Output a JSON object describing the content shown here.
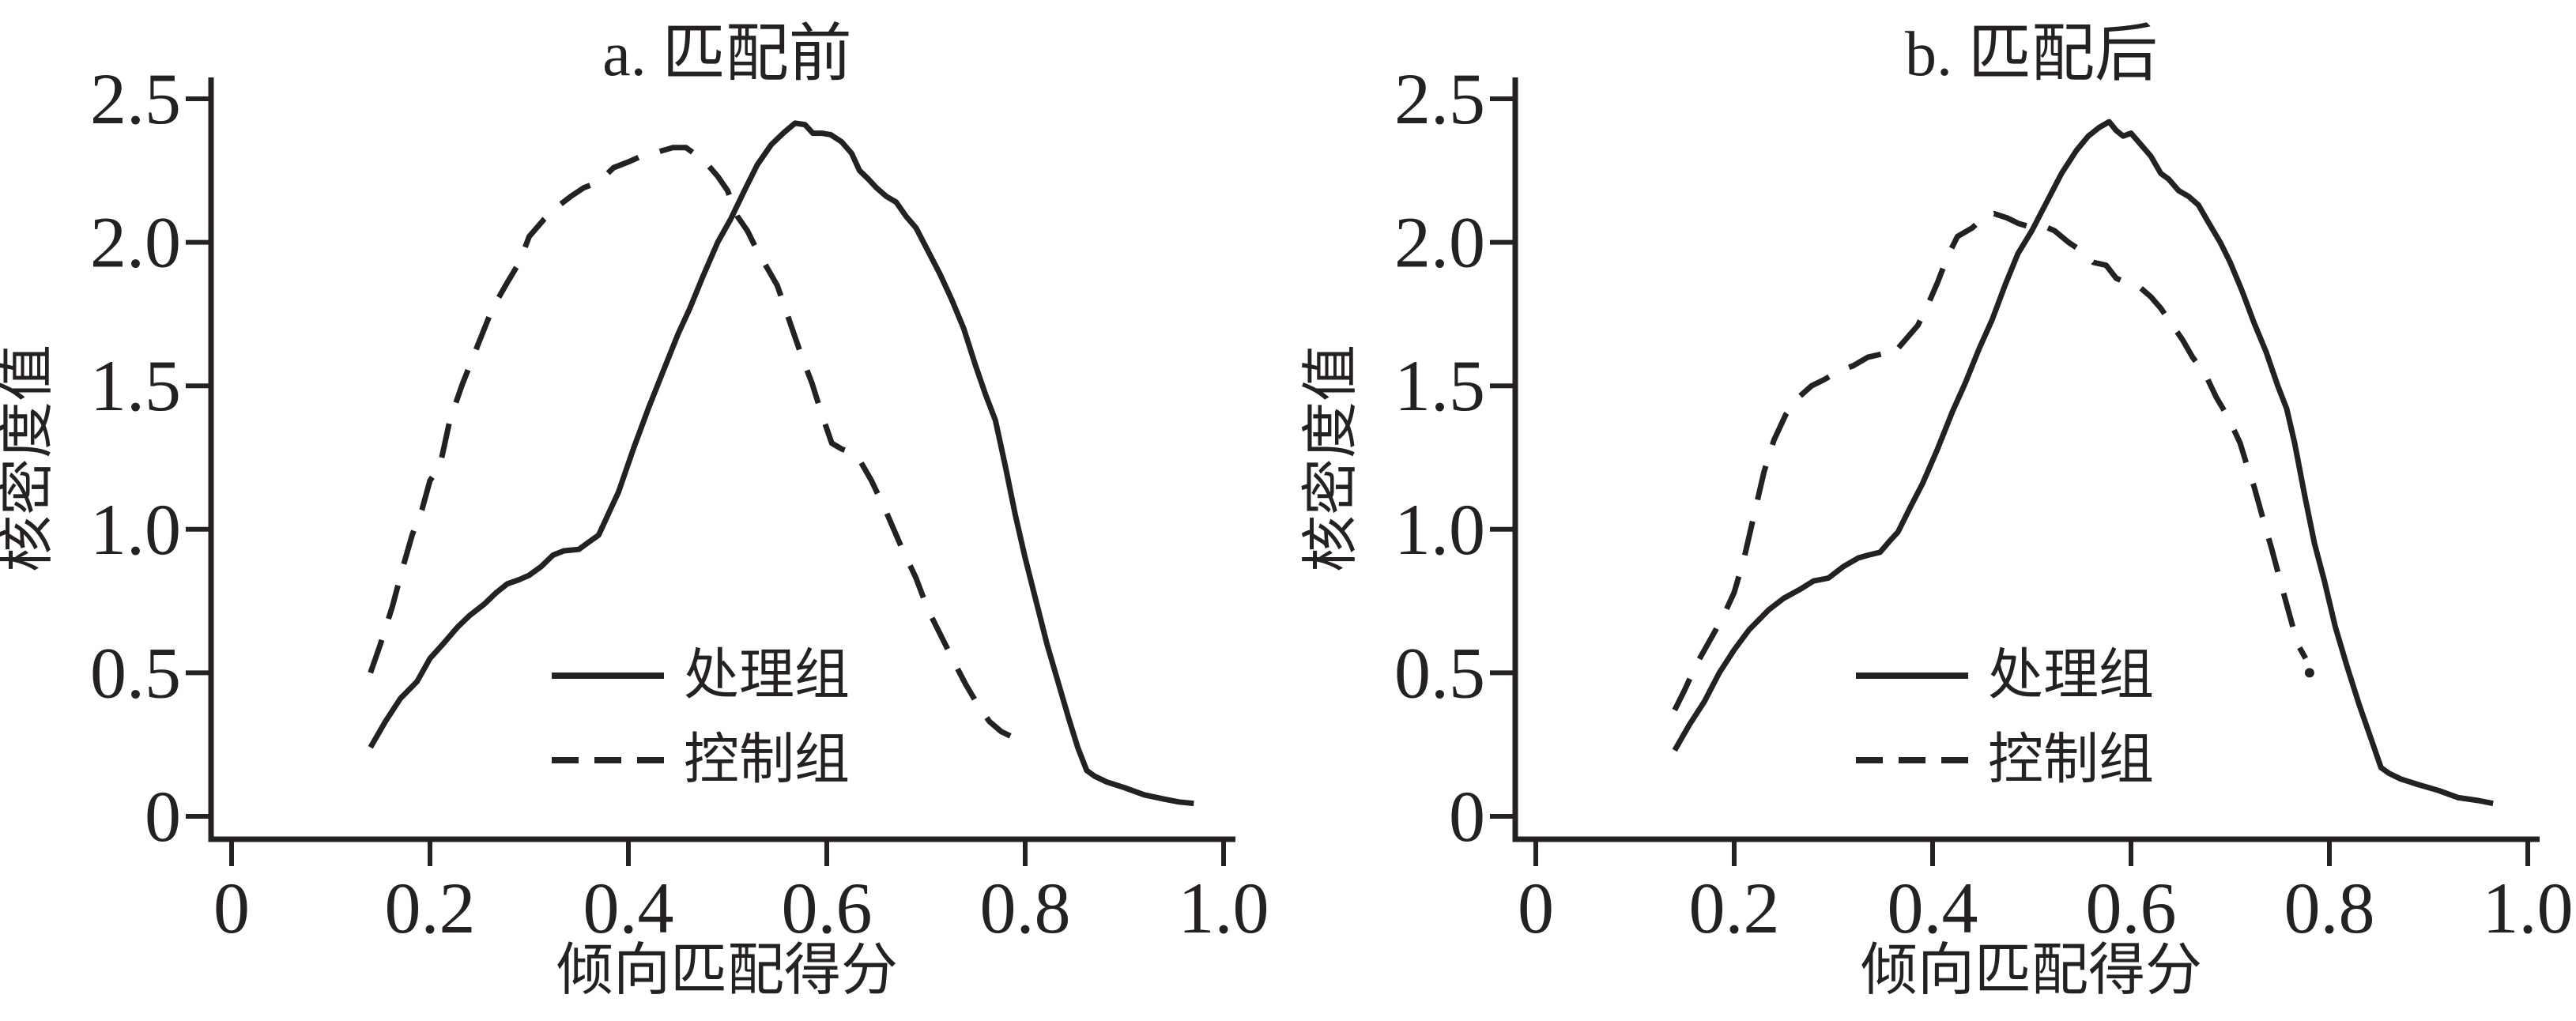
{
  "figure": {
    "description": "两幅核密度曲线图（倾向得分匹配前后对比）",
    "ink_color": "#262121",
    "background_color": "#ffffff"
  },
  "chart_data": [
    {
      "type": "line",
      "panel": "a",
      "title": "a. 匹配前",
      "xlabel": "倾向匹配得分",
      "ylabel": "核密度值",
      "xlim": [
        0,
        1.0
      ],
      "ylim": [
        0,
        2.5
      ],
      "x_ticks": [
        "0",
        "0.2",
        "0.4",
        "0.6",
        "0.8",
        "1.0"
      ],
      "y_ticks": [
        "0",
        "0.5",
        "1.0",
        "1.5",
        "2.0",
        "2.5"
      ],
      "grid": false,
      "legend_position": "inside-lower-center",
      "series": [
        {
          "name": "处理组",
          "style": "solid",
          "points": [
            [
              0.14,
              0.24
            ],
            [
              0.155,
              0.33
            ],
            [
              0.17,
              0.41
            ],
            [
              0.187,
              0.47
            ],
            [
              0.2,
              0.55
            ],
            [
              0.213,
              0.6
            ],
            [
              0.228,
              0.66
            ],
            [
              0.24,
              0.7
            ],
            [
              0.255,
              0.74
            ],
            [
              0.267,
              0.78
            ],
            [
              0.278,
              0.81
            ],
            [
              0.29,
              0.825
            ],
            [
              0.3,
              0.84
            ],
            [
              0.312,
              0.87
            ],
            [
              0.324,
              0.91
            ],
            [
              0.335,
              0.925
            ],
            [
              0.35,
              0.93
            ],
            [
              0.36,
              0.955
            ],
            [
              0.37,
              0.98
            ],
            [
              0.382,
              1.07
            ],
            [
              0.39,
              1.13
            ],
            [
              0.405,
              1.28
            ],
            [
              0.42,
              1.42
            ],
            [
              0.435,
              1.55
            ],
            [
              0.45,
              1.68
            ],
            [
              0.462,
              1.77
            ],
            [
              0.475,
              1.88
            ],
            [
              0.49,
              2.0
            ],
            [
              0.503,
              2.08
            ],
            [
              0.517,
              2.18
            ],
            [
              0.53,
              2.27
            ],
            [
              0.544,
              2.34
            ],
            [
              0.556,
              2.38
            ],
            [
              0.568,
              2.415
            ],
            [
              0.578,
              2.41
            ],
            [
              0.586,
              2.38
            ],
            [
              0.595,
              2.38
            ],
            [
              0.604,
              2.375
            ],
            [
              0.615,
              2.35
            ],
            [
              0.625,
              2.31
            ],
            [
              0.633,
              2.25
            ],
            [
              0.642,
              2.22
            ],
            [
              0.65,
              2.19
            ],
            [
              0.66,
              2.16
            ],
            [
              0.67,
              2.14
            ],
            [
              0.68,
              2.09
            ],
            [
              0.69,
              2.05
            ],
            [
              0.702,
              1.97
            ],
            [
              0.714,
              1.89
            ],
            [
              0.726,
              1.8
            ],
            [
              0.738,
              1.7
            ],
            [
              0.75,
              1.57
            ],
            [
              0.76,
              1.47
            ],
            [
              0.77,
              1.38
            ],
            [
              0.78,
              1.22
            ],
            [
              0.79,
              1.05
            ],
            [
              0.8,
              0.9
            ],
            [
              0.811,
              0.75
            ],
            [
              0.822,
              0.6
            ],
            [
              0.833,
              0.47
            ],
            [
              0.844,
              0.34
            ],
            [
              0.853,
              0.24
            ],
            [
              0.862,
              0.16
            ],
            [
              0.87,
              0.14
            ],
            [
              0.882,
              0.12
            ],
            [
              0.9,
              0.1
            ],
            [
              0.92,
              0.075
            ],
            [
              0.94,
              0.06
            ],
            [
              0.955,
              0.05
            ],
            [
              0.97,
              0.045
            ]
          ]
        },
        {
          "name": "控制组",
          "style": "dashed",
          "points": [
            [
              0.14,
              0.5
            ],
            [
              0.15,
              0.6
            ],
            [
              0.162,
              0.73
            ],
            [
              0.172,
              0.86
            ],
            [
              0.182,
              0.98
            ],
            [
              0.192,
              1.07
            ],
            [
              0.2,
              1.17
            ],
            [
              0.21,
              1.22
            ],
            [
              0.22,
              1.38
            ],
            [
              0.232,
              1.5
            ],
            [
              0.248,
              1.64
            ],
            [
              0.263,
              1.77
            ],
            [
              0.278,
              1.86
            ],
            [
              0.29,
              1.93
            ],
            [
              0.3,
              2.02
            ],
            [
              0.315,
              2.08
            ],
            [
              0.327,
              2.12
            ],
            [
              0.342,
              2.16
            ],
            [
              0.355,
              2.19
            ],
            [
              0.37,
              2.21
            ],
            [
              0.385,
              2.26
            ],
            [
              0.4,
              2.28
            ],
            [
              0.413,
              2.3
            ],
            [
              0.43,
              2.315
            ],
            [
              0.445,
              2.33
            ],
            [
              0.458,
              2.33
            ],
            [
              0.47,
              2.3
            ],
            [
              0.48,
              2.27
            ],
            [
              0.49,
              2.23
            ],
            [
              0.5,
              2.18
            ],
            [
              0.51,
              2.09
            ],
            [
              0.52,
              2.04
            ],
            [
              0.53,
              1.97
            ],
            [
              0.54,
              1.91
            ],
            [
              0.55,
              1.85
            ],
            [
              0.562,
              1.73
            ],
            [
              0.575,
              1.6
            ],
            [
              0.585,
              1.51
            ],
            [
              0.595,
              1.4
            ],
            [
              0.605,
              1.3
            ],
            [
              0.615,
              1.28
            ],
            [
              0.63,
              1.26
            ],
            [
              0.645,
              1.17
            ],
            [
              0.66,
              1.06
            ],
            [
              0.675,
              0.94
            ],
            [
              0.69,
              0.83
            ],
            [
              0.702,
              0.72
            ],
            [
              0.715,
              0.63
            ],
            [
              0.728,
              0.54
            ],
            [
              0.74,
              0.46
            ],
            [
              0.752,
              0.39
            ],
            [
              0.764,
              0.33
            ],
            [
              0.776,
              0.295
            ],
            [
              0.785,
              0.28
            ]
          ]
        }
      ]
    },
    {
      "type": "line",
      "panel": "b",
      "title": "b. 匹配后",
      "xlabel": "倾向匹配得分",
      "ylabel": "核密度值",
      "xlim": [
        0,
        1.0
      ],
      "ylim": [
        0,
        2.5
      ],
      "x_ticks": [
        "0",
        "0.2",
        "0.4",
        "0.6",
        "0.8",
        "1.0"
      ],
      "y_ticks": [
        "0",
        "0.5",
        "1.0",
        "1.5",
        "2.0",
        "2.5"
      ],
      "grid": false,
      "legend_position": "inside-lower-center",
      "series": [
        {
          "name": "处理组",
          "style": "solid",
          "points": [
            [
              0.14,
              0.23
            ],
            [
              0.155,
              0.32
            ],
            [
              0.17,
              0.4
            ],
            [
              0.185,
              0.5
            ],
            [
              0.2,
              0.58
            ],
            [
              0.215,
              0.65
            ],
            [
              0.235,
              0.72
            ],
            [
              0.25,
              0.76
            ],
            [
              0.266,
              0.79
            ],
            [
              0.28,
              0.82
            ],
            [
              0.295,
              0.83
            ],
            [
              0.31,
              0.87
            ],
            [
              0.325,
              0.9
            ],
            [
              0.335,
              0.91
            ],
            [
              0.347,
              0.92
            ],
            [
              0.357,
              0.96
            ],
            [
              0.365,
              0.99
            ],
            [
              0.378,
              1.08
            ],
            [
              0.39,
              1.16
            ],
            [
              0.405,
              1.28
            ],
            [
              0.42,
              1.41
            ],
            [
              0.433,
              1.51
            ],
            [
              0.447,
              1.63
            ],
            [
              0.46,
              1.73
            ],
            [
              0.473,
              1.85
            ],
            [
              0.486,
              1.96
            ],
            [
              0.5,
              2.04
            ],
            [
              0.515,
              2.14
            ],
            [
              0.53,
              2.24
            ],
            [
              0.545,
              2.32
            ],
            [
              0.557,
              2.37
            ],
            [
              0.568,
              2.4
            ],
            [
              0.578,
              2.42
            ],
            [
              0.585,
              2.39
            ],
            [
              0.592,
              2.37
            ],
            [
              0.6,
              2.38
            ],
            [
              0.61,
              2.34
            ],
            [
              0.62,
              2.3
            ],
            [
              0.63,
              2.24
            ],
            [
              0.638,
              2.22
            ],
            [
              0.648,
              2.18
            ],
            [
              0.658,
              2.16
            ],
            [
              0.668,
              2.13
            ],
            [
              0.678,
              2.07
            ],
            [
              0.69,
              2.0
            ],
            [
              0.7,
              1.93
            ],
            [
              0.712,
              1.83
            ],
            [
              0.724,
              1.72
            ],
            [
              0.736,
              1.62
            ],
            [
              0.748,
              1.5
            ],
            [
              0.757,
              1.42
            ],
            [
              0.765,
              1.3
            ],
            [
              0.775,
              1.12
            ],
            [
              0.785,
              0.95
            ],
            [
              0.795,
              0.82
            ],
            [
              0.806,
              0.66
            ],
            [
              0.818,
              0.52
            ],
            [
              0.83,
              0.39
            ],
            [
              0.842,
              0.27
            ],
            [
              0.852,
              0.17
            ],
            [
              0.86,
              0.15
            ],
            [
              0.872,
              0.13
            ],
            [
              0.89,
              0.11
            ],
            [
              0.91,
              0.09
            ],
            [
              0.93,
              0.065
            ],
            [
              0.95,
              0.055
            ],
            [
              0.965,
              0.045
            ]
          ]
        },
        {
          "name": "控制组",
          "style": "dashed",
          "points": [
            [
              0.14,
              0.37
            ],
            [
              0.15,
              0.44
            ],
            [
              0.162,
              0.53
            ],
            [
              0.175,
              0.61
            ],
            [
              0.188,
              0.69
            ],
            [
              0.2,
              0.78
            ],
            [
              0.21,
              0.9
            ],
            [
              0.22,
              1.05
            ],
            [
              0.23,
              1.2
            ],
            [
              0.24,
              1.31
            ],
            [
              0.252,
              1.4
            ],
            [
              0.265,
              1.46
            ],
            [
              0.278,
              1.5
            ],
            [
              0.29,
              1.52
            ],
            [
              0.305,
              1.55
            ],
            [
              0.32,
              1.57
            ],
            [
              0.335,
              1.6
            ],
            [
              0.348,
              1.61
            ],
            [
              0.356,
              1.6
            ],
            [
              0.365,
              1.63
            ],
            [
              0.375,
              1.67
            ],
            [
              0.385,
              1.71
            ],
            [
              0.395,
              1.78
            ],
            [
              0.405,
              1.86
            ],
            [
              0.415,
              1.95
            ],
            [
              0.425,
              2.02
            ],
            [
              0.44,
              2.05
            ],
            [
              0.452,
              2.09
            ],
            [
              0.462,
              2.1
            ],
            [
              0.475,
              2.085
            ],
            [
              0.487,
              2.065
            ],
            [
              0.497,
              2.055
            ],
            [
              0.51,
              2.06
            ],
            [
              0.523,
              2.04
            ],
            [
              0.537,
              2.0
            ],
            [
              0.55,
              1.97
            ],
            [
              0.562,
              1.93
            ],
            [
              0.575,
              1.92
            ],
            [
              0.585,
              1.875
            ],
            [
              0.598,
              1.855
            ],
            [
              0.61,
              1.84
            ],
            [
              0.62,
              1.81
            ],
            [
              0.63,
              1.77
            ],
            [
              0.642,
              1.71
            ],
            [
              0.652,
              1.66
            ],
            [
              0.662,
              1.6
            ],
            [
              0.675,
              1.54
            ],
            [
              0.686,
              1.46
            ],
            [
              0.698,
              1.39
            ],
            [
              0.71,
              1.3
            ],
            [
              0.718,
              1.21
            ],
            [
              0.724,
              1.15
            ],
            [
              0.732,
              1.05
            ],
            [
              0.742,
              0.93
            ],
            [
              0.752,
              0.8
            ],
            [
              0.76,
              0.7
            ],
            [
              0.768,
              0.6
            ],
            [
              0.776,
              0.55
            ]
          ],
          "end_dot": [
            0.78,
            0.5
          ]
        }
      ]
    }
  ]
}
